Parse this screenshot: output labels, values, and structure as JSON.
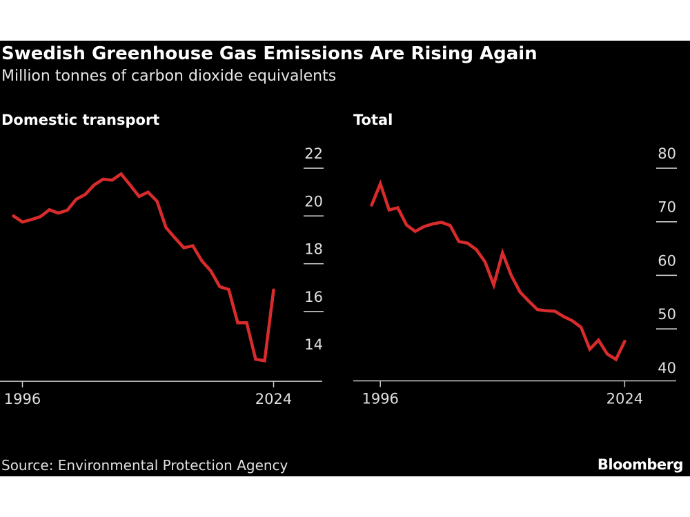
{
  "title": "Swedish Greenhouse Gas Emissions Are Rising Again",
  "subtitle": "Million tonnes of carbon dioxide equivalents",
  "source": "Source: Environmental Protection Agency",
  "logo": "Bloomberg",
  "colors": {
    "background": "#000000",
    "line": "#d92b2b",
    "text": "#ffffff",
    "axis": "#cccccc"
  },
  "chart_data": [
    {
      "type": "line",
      "title": "Domestic transport",
      "x_ticks": [
        "1996",
        "2024"
      ],
      "y_ticks": [
        14,
        16,
        18,
        20,
        22
      ],
      "ylim": [
        13,
        23
      ],
      "xlim": [
        1993.5,
        2029.5
      ],
      "grid": false,
      "x": [
        1995,
        1996,
        1997,
        1998,
        1999,
        2000,
        2001,
        2002,
        2003,
        2004,
        2005,
        2006,
        2007,
        2008,
        2009,
        2010,
        2011,
        2012,
        2013,
        2014,
        2015,
        2016,
        2017,
        2018,
        2019,
        2020,
        2021,
        2022,
        2023,
        2024
      ],
      "values": [
        20.0,
        19.75,
        19.85,
        19.97,
        20.26,
        20.12,
        20.24,
        20.7,
        20.9,
        21.3,
        21.54,
        21.5,
        21.76,
        21.3,
        20.82,
        21.0,
        20.62,
        19.52,
        19.08,
        18.67,
        18.75,
        18.12,
        17.7,
        17.04,
        16.92,
        15.53,
        15.53,
        14.0,
        13.94,
        16.9
      ]
    },
    {
      "type": "line",
      "title": "Total",
      "x_ticks": [
        "1996",
        "2024"
      ],
      "y_ticks": [
        40,
        50,
        60,
        70,
        80
      ],
      "ylim": [
        40,
        84
      ],
      "xlim": [
        1992.9,
        2029.9
      ],
      "grid": false,
      "x": [
        1995,
        1996,
        1997,
        1998,
        1999,
        2000,
        2001,
        2002,
        2003,
        2004,
        2005,
        2006,
        2007,
        2008,
        2009,
        2010,
        2011,
        2012,
        2013,
        2014,
        2015,
        2016,
        2017,
        2018,
        2019,
        2020,
        2021,
        2022,
        2023,
        2024
      ],
      "values": [
        73.1,
        77.1,
        72.2,
        72.6,
        69.4,
        68.2,
        69.1,
        69.6,
        69.9,
        69.3,
        66.3,
        66.0,
        64.8,
        62.5,
        58.2,
        64.2,
        60.0,
        56.9,
        55.2,
        53.6,
        53.4,
        53.3,
        52.3,
        51.5,
        50.3,
        46.2,
        47.9,
        45.3,
        44.3,
        47.7
      ]
    }
  ]
}
